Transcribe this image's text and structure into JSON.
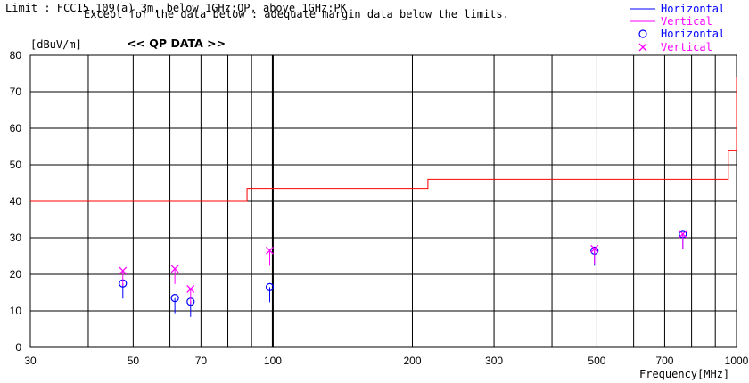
{
  "header": {
    "limit_line": "Limit : FCC15.109(a) 3m, below 1GHz:QP, above 1GHz:PK",
    "note_line": "Except for the  data below : adequate margin data below the limits."
  },
  "chart_data": {
    "type": "scatter",
    "title": "<< QP DATA >>",
    "ylabel": "[dBuV/m]",
    "xlabel": "Frequency[MHz]",
    "x_scale": "log",
    "xlim": [
      30,
      1000
    ],
    "ylim": [
      0,
      80
    ],
    "x_ticks": [
      30,
      50,
      70,
      100,
      200,
      300,
      500,
      700,
      1000
    ],
    "y_ticks": [
      0,
      10,
      20,
      30,
      40,
      50,
      60,
      70,
      80
    ],
    "grid": true,
    "legend_position": "top-right",
    "legend": [
      {
        "label": "Horizontal",
        "marker": "line",
        "color": "#0000ff"
      },
      {
        "label": "Vertical",
        "marker": "line",
        "color": "#ff00ff"
      },
      {
        "label": "Horizontal",
        "marker": "circle",
        "color": "#0000ff"
      },
      {
        "label": "Vertical",
        "marker": "cross",
        "color": "#ff00ff"
      }
    ],
    "limit": {
      "color": "#ff0000",
      "points": [
        [
          30,
          40
        ],
        [
          88,
          40
        ],
        [
          88,
          43.5
        ],
        [
          216,
          43.5
        ],
        [
          216,
          46
        ],
        [
          960,
          46
        ],
        [
          960,
          54
        ],
        [
          1000,
          54
        ],
        [
          1000,
          74
        ]
      ]
    },
    "series": [
      {
        "name": "Horizontal",
        "marker": "circle",
        "color": "#0000ff",
        "points": [
          [
            47.5,
            17.5
          ],
          [
            61.5,
            13.5
          ],
          [
            66.5,
            12.5
          ],
          [
            98.5,
            16.5
          ],
          [
            494,
            26.5
          ],
          [
            766,
            31.0
          ]
        ]
      },
      {
        "name": "Vertical",
        "marker": "cross",
        "color": "#ff00ff",
        "points": [
          [
            47.5,
            21.0
          ],
          [
            61.5,
            21.5
          ],
          [
            66.5,
            16.0
          ],
          [
            98.5,
            26.5
          ],
          [
            494,
            27.0
          ],
          [
            766,
            31.0
          ]
        ]
      }
    ]
  }
}
